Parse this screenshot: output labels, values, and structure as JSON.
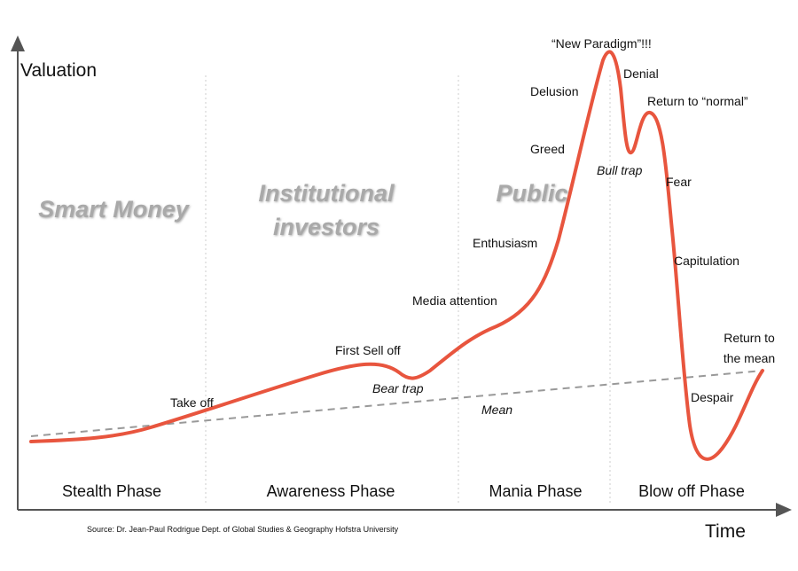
{
  "axes": {
    "y_label": "Valuation",
    "x_label": "Time"
  },
  "groups": [
    {
      "lines": [
        "Smart Money"
      ]
    },
    {
      "lines": [
        "Institutional",
        "investors"
      ]
    },
    {
      "lines": [
        "Public"
      ]
    }
  ],
  "phases": [
    "Stealth Phase",
    "Awareness Phase",
    "Mania Phase",
    "Blow off Phase"
  ],
  "annotations": [
    {
      "lines": [
        "Take off"
      ]
    },
    {
      "lines": [
        "First Sell off"
      ]
    },
    {
      "lines": [
        "Bear trap"
      ]
    },
    {
      "lines": [
        "Media attention"
      ]
    },
    {
      "lines": [
        "Enthusiasm"
      ]
    },
    {
      "lines": [
        "Greed"
      ]
    },
    {
      "lines": [
        "Delusion"
      ]
    },
    {
      "lines": [
        "“New Paradigm”!!!"
      ]
    },
    {
      "lines": [
        "Denial"
      ]
    },
    {
      "lines": [
        "Return to “normal”"
      ]
    },
    {
      "lines": [
        "Bull trap"
      ]
    },
    {
      "lines": [
        "Fear"
      ]
    },
    {
      "lines": [
        "Capitulation"
      ]
    },
    {
      "lines": [
        "Despair"
      ]
    },
    {
      "lines": [
        "Return to",
        "the mean"
      ]
    },
    {
      "lines": [
        "Mean"
      ]
    }
  ],
  "source": "Source: Dr. Jean-Paul Rodrigue Dept. of Global Studies & Geography Hofstra University"
}
